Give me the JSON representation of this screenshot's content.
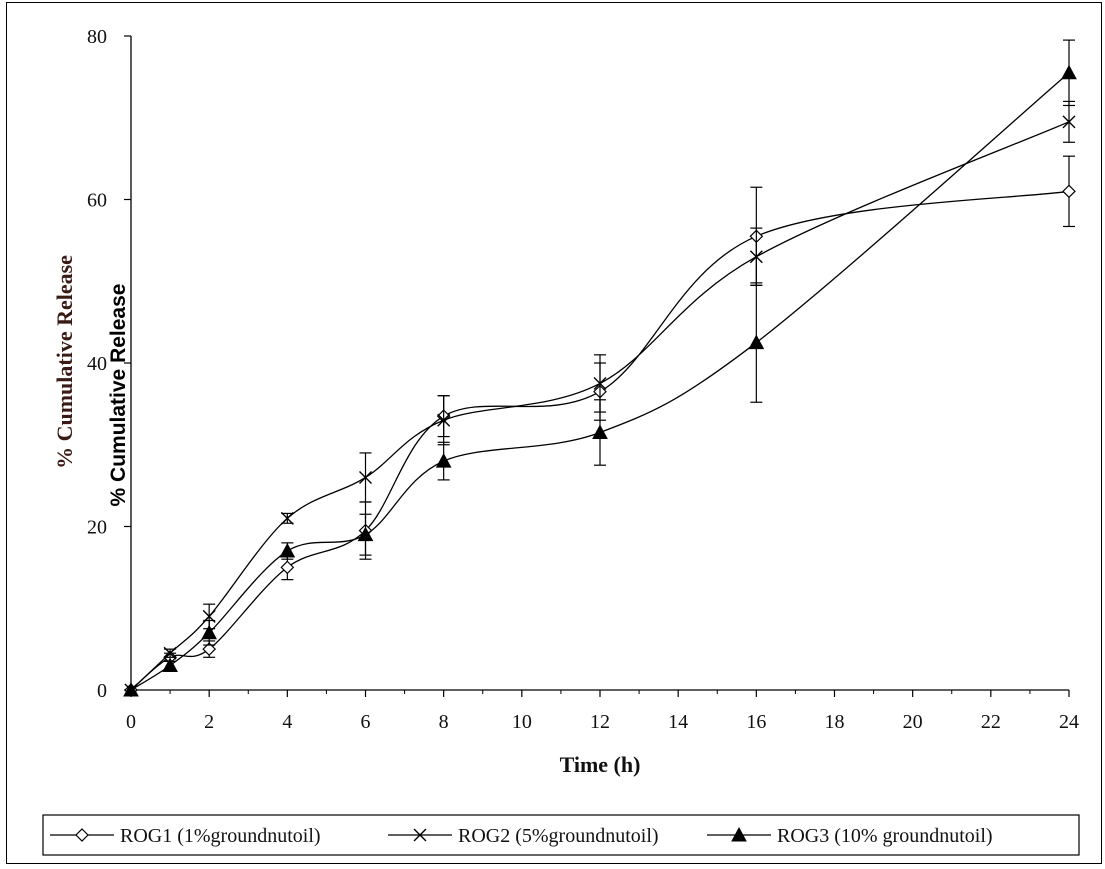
{
  "chart_data": {
    "type": "line",
    "xlabel": "Time (h)",
    "ylabel": "% Cumulative Release",
    "ylabel_overlay": "% Cumulative Release",
    "xlim": [
      0,
      24
    ],
    "ylim": [
      0,
      80
    ],
    "xticks": [
      0,
      2,
      4,
      6,
      8,
      10,
      12,
      14,
      16,
      18,
      20,
      22,
      24
    ],
    "yticks": [
      0,
      20,
      40,
      60,
      80
    ],
    "grid": false,
    "legend_position": "bottom",
    "series": [
      {
        "name": "ROG1 (1%groundnutoil)",
        "marker": "diamond-open",
        "x": [
          0,
          1,
          2,
          4,
          6,
          8,
          12,
          16,
          24
        ],
        "y": [
          0,
          4,
          5,
          15,
          19.5,
          33.5,
          36.5,
          55.5,
          61
        ],
        "err": [
          0,
          0.5,
          1,
          1.5,
          3.5,
          2.5,
          3.5,
          6,
          4.3
        ]
      },
      {
        "name": "ROG2 (5%groundnutoil)",
        "marker": "cross",
        "x": [
          0,
          1,
          2,
          4,
          6,
          8,
          12,
          16,
          24
        ],
        "y": [
          0,
          4.5,
          9,
          21,
          26,
          33,
          37.5,
          53,
          69.5
        ],
        "err": [
          0,
          0.5,
          1.5,
          0.6,
          3,
          3,
          3.5,
          3.5,
          2.5
        ]
      },
      {
        "name": "ROG3 (10% groundnutoil)",
        "marker": "triangle-filled",
        "x": [
          0,
          1,
          2,
          4,
          6,
          8,
          12,
          16,
          24
        ],
        "y": [
          0,
          3,
          7,
          17,
          19,
          28,
          31.5,
          42.5,
          75.5
        ],
        "err": [
          0,
          0.5,
          1.5,
          1,
          2.5,
          2.3,
          4,
          7.3,
          4
        ]
      }
    ]
  }
}
